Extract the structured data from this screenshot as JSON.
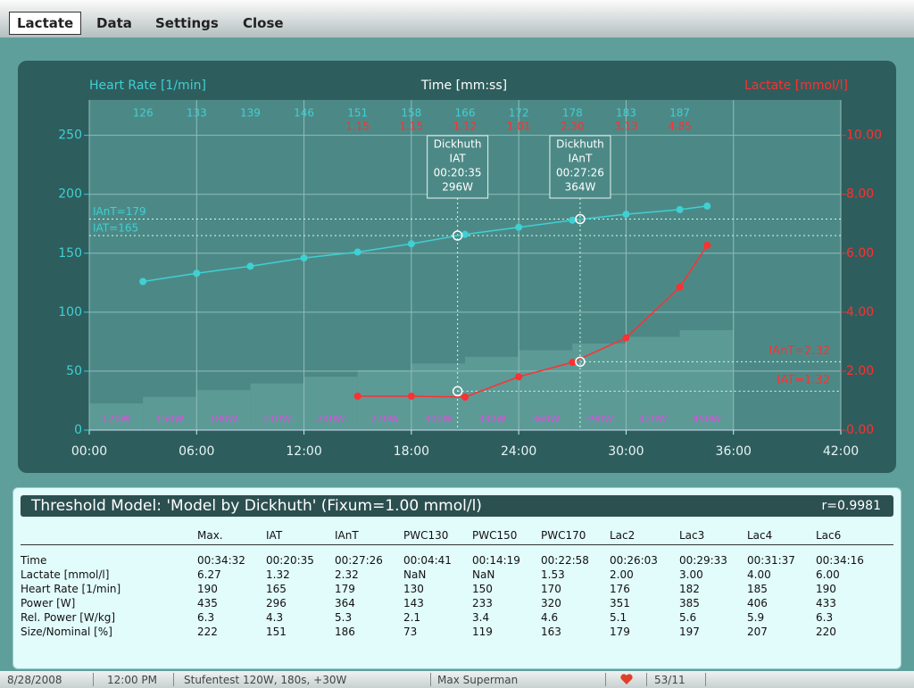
{
  "menu": [
    "Lactate",
    "Data",
    "Settings",
    "Close"
  ],
  "chart_data": {
    "type": "line",
    "x_label": "Time [mm:ss]",
    "xlim": [
      0,
      42
    ],
    "xticks": [
      {
        "value": 0,
        "label": "00:00"
      },
      {
        "value": 6,
        "label": "06:00"
      },
      {
        "value": 12,
        "label": "12:00"
      },
      {
        "value": 18,
        "label": "18:00"
      },
      {
        "value": 24,
        "label": "24:00"
      },
      {
        "value": 30,
        "label": "30:00"
      },
      {
        "value": 36,
        "label": "36:00"
      },
      {
        "value": 42,
        "label": "42:00"
      }
    ],
    "ylim": [
      0,
      280
    ],
    "yticks": [
      0,
      50,
      100,
      150,
      200,
      250
    ],
    "y2lim": [
      0,
      11.2
    ],
    "y2ticks": [
      {
        "value": 0,
        "label": "0.00"
      },
      {
        "value": 2,
        "label": "2.00"
      },
      {
        "value": 4,
        "label": "4.00"
      },
      {
        "value": 6,
        "label": "6.00"
      },
      {
        "value": 8,
        "label": "8.00"
      },
      {
        "value": 10,
        "label": "10.00"
      }
    ],
    "grid": true,
    "series": [
      {
        "name": "Heart Rate [1/min]",
        "color": "#3fd0d4",
        "axis": "y",
        "x": [
          3,
          6,
          9,
          12,
          15,
          18,
          21,
          24,
          27,
          30,
          33,
          34.53
        ],
        "values": [
          126,
          133,
          139,
          146,
          151,
          158,
          166,
          172,
          178,
          183,
          187,
          190
        ]
      },
      {
        "name": "Lactate [mmol/l]",
        "color": "#ff3030",
        "axis": "y2",
        "x": [
          15,
          18,
          21,
          24,
          27,
          30,
          33,
          34.53
        ],
        "values": [
          1.15,
          1.15,
          1.12,
          1.81,
          2.3,
          3.13,
          4.85,
          6.27
        ],
        "value_labels": [
          "1.15",
          "1.15",
          "1.12",
          "1.81",
          "2.30",
          "3.13",
          "4.85",
          null
        ]
      },
      {
        "type": "bar",
        "color": "#5c9a96",
        "label_color": "#e24be0",
        "bins": [
          0,
          3,
          6,
          9,
          12,
          15,
          18,
          21,
          24,
          27,
          30,
          33,
          36
        ],
        "values": [
          120,
          150,
          180,
          210,
          240,
          270,
          300,
          330,
          360,
          390,
          420,
          450
        ],
        "value_labels": [
          "120W",
          "150W",
          "180W",
          "210W",
          "240W",
          "270W",
          "300W",
          "330W",
          "360W",
          "390W",
          "420W",
          "450W"
        ]
      }
    ],
    "thresholds": [
      {
        "method": "Dickhuth",
        "name": "IAT",
        "time": 20.583,
        "time_label": "00:20:35",
        "power_label": "296W",
        "hr": 165,
        "hr_label": "IAT=165",
        "lactate": 1.32,
        "lactate_label": "IAT=1.32"
      },
      {
        "method": "Dickhuth",
        "name": "IAnT",
        "time": 27.433,
        "time_label": "00:27:26",
        "power_label": "364W",
        "hr": 179,
        "hr_label": "IAnT=179",
        "lactate": 2.32,
        "lactate_label": "IAnT=2.32"
      }
    ]
  },
  "table": {
    "title": "Threshold Model: 'Model by Dickhuth' (Fixum=1.00 mmol/l)",
    "r": "r=0.9981",
    "columns": [
      "Max.",
      "IAT",
      "IAnT",
      "PWC130",
      "PWC150",
      "PWC170",
      "Lac2",
      "Lac3",
      "Lac4",
      "Lac6"
    ],
    "rows": [
      [
        "Time",
        "00:34:32",
        "00:20:35",
        "00:27:26",
        "00:04:41",
        "00:14:19",
        "00:22:58",
        "00:26:03",
        "00:29:33",
        "00:31:37",
        "00:34:16"
      ],
      [
        "Lactate [mmol/l]",
        "6.27",
        "1.32",
        "2.32",
        "NaN",
        "NaN",
        "1.53",
        "2.00",
        "3.00",
        "4.00",
        "6.00"
      ],
      [
        "Heart Rate [1/min]",
        "190",
        "165",
        "179",
        "130",
        "150",
        "170",
        "176",
        "182",
        "185",
        "190"
      ],
      [
        "Power [W]",
        "435",
        "296",
        "364",
        "143",
        "233",
        "320",
        "351",
        "385",
        "406",
        "433"
      ],
      [
        "Rel. Power [W/kg]",
        "6.3",
        "4.3",
        "5.3",
        "2.1",
        "3.4",
        "4.6",
        "5.1",
        "5.6",
        "5.9",
        "6.3"
      ],
      [
        "Size/Nominal [%]",
        "222",
        "151",
        "186",
        "73",
        "119",
        "163",
        "179",
        "197",
        "207",
        "220"
      ]
    ]
  },
  "status": [
    "8/28/2008",
    "12:00 PM",
    "Stufentest 120W, 180s, +30W",
    "Max Superman",
    "53/11"
  ]
}
